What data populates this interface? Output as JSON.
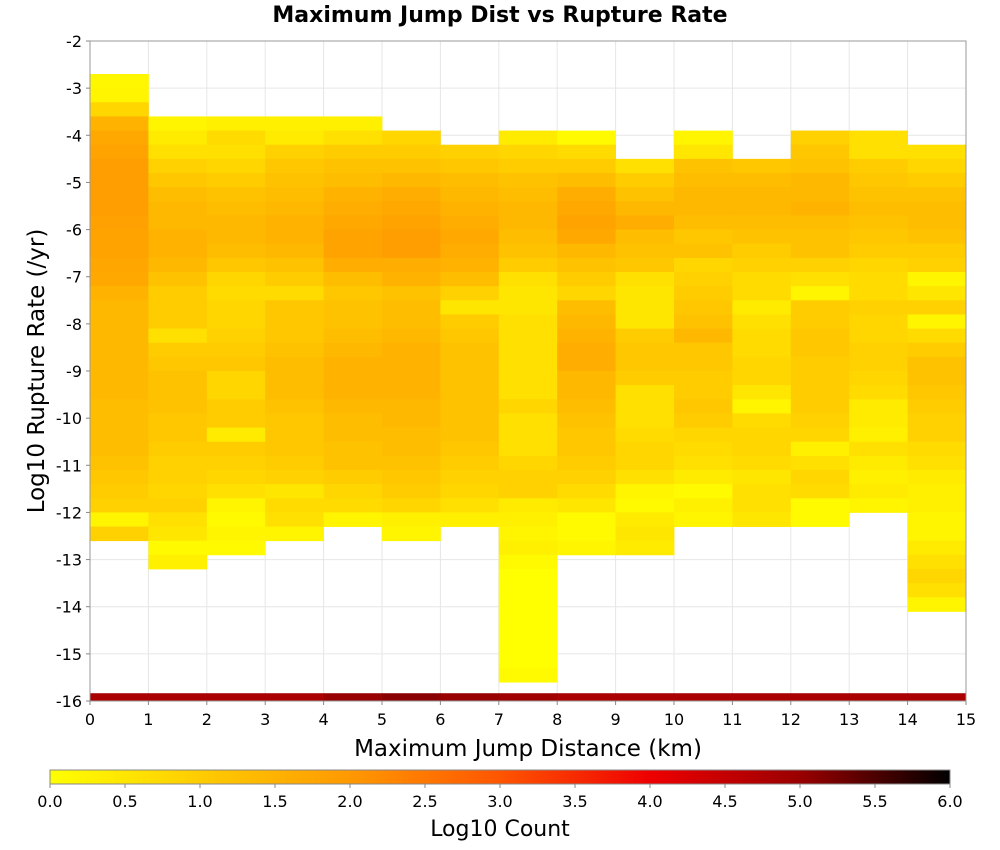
{
  "chart_data": {
    "type": "heatmap",
    "title": "Maximum Jump Dist vs Rupture Rate",
    "xlabel": "Maximum Jump Distance (km)",
    "ylabel": "Log10 Rupture Rate (/yr)",
    "xlim": [
      0,
      15
    ],
    "ylim": [
      -16,
      -2
    ],
    "x_ticks": [
      "0",
      "1",
      "2",
      "3",
      "4",
      "5",
      "6",
      "7",
      "8",
      "9",
      "10",
      "11",
      "12",
      "13",
      "14",
      "15"
    ],
    "y_ticks": [
      "-16",
      "-15",
      "-14",
      "-13",
      "-12",
      "-11",
      "-10",
      "-9",
      "-8",
      "-7",
      "-6",
      "-5",
      "-4",
      "-3",
      "-2"
    ],
    "grid": true,
    "x_bin_width": 1,
    "y_bin_height": 0.3,
    "colorbar": {
      "label": "Log10 Count",
      "range": [
        0.0,
        6.0
      ],
      "ticks": [
        "0.0",
        "0.5",
        "1.0",
        "1.5",
        "2.0",
        "2.5",
        "3.0",
        "3.5",
        "4.0",
        "4.5",
        "5.0",
        "5.5",
        "6.0"
      ],
      "colors": [
        "#ffff00",
        "#ffcc00",
        "#ff9900",
        "#ff5500",
        "#ee0000",
        "#990000",
        "#000000"
      ]
    },
    "columns": [
      {
        "x": 0,
        "y_top": -2.7,
        "values": [
          0.15,
          0.2,
          0.8,
          1.5,
          1.7,
          1.8,
          1.9,
          1.9,
          1.9,
          1.9,
          1.85,
          1.8,
          1.8,
          1.75,
          1.7,
          1.5,
          1.4,
          1.4,
          1.4,
          1.4,
          1.4,
          1.4,
          1.4,
          1.3,
          1.3,
          1.3,
          1.3,
          1.2,
          1.1,
          1.0,
          0.9,
          0.2,
          0.9
        ]
      },
      {
        "x": 1,
        "y_top": -3.6,
        "values": [
          0.2,
          0.4,
          0.6,
          0.9,
          1.1,
          1.3,
          1.4,
          1.4,
          1.5,
          1.5,
          1.4,
          1.2,
          1.0,
          1.0,
          1.0,
          0.6,
          1.0,
          1.1,
          1.2,
          1.2,
          1.2,
          1.1,
          1.1,
          1.0,
          0.9,
          0.9,
          0.8,
          0.9,
          0.6,
          0.5,
          0.1,
          0.3
        ]
      },
      {
        "x": 2,
        "y_top": -3.6,
        "values": [
          0.3,
          0.7,
          0.6,
          0.8,
          1.0,
          1.2,
          1.3,
          1.4,
          1.4,
          1.3,
          1.1,
          0.8,
          0.7,
          0.8,
          0.8,
          0.9,
          1.0,
          1.1,
          0.8,
          0.8,
          1.0,
          1.0,
          0.4,
          1.0,
          0.9,
          0.8,
          0.6,
          0.2,
          0.1,
          0.2,
          0.1
        ]
      },
      {
        "x": 3,
        "y_top": -3.6,
        "values": [
          0.3,
          0.4,
          0.9,
          1.1,
          1.2,
          1.3,
          1.4,
          1.5,
          1.5,
          1.4,
          1.2,
          1.0,
          0.7,
          1.1,
          1.1,
          1.1,
          1.2,
          1.3,
          1.3,
          1.3,
          1.2,
          1.1,
          1.1,
          1.1,
          1.0,
          0.9,
          0.5,
          0.7,
          0.6,
          0.2
        ]
      },
      {
        "x": 4,
        "y_top": -3.6,
        "values": [
          0.3,
          0.6,
          1.0,
          1.2,
          1.3,
          1.5,
          1.6,
          1.7,
          1.8,
          1.8,
          1.6,
          1.3,
          1.1,
          1.2,
          1.2,
          1.3,
          1.4,
          1.5,
          1.5,
          1.5,
          1.4,
          1.3,
          1.3,
          1.2,
          1.2,
          1.0,
          0.8,
          0.7,
          0.2
        ]
      },
      {
        "x": 5,
        "y_top": -3.9,
        "values": [
          0.8,
          1.0,
          1.2,
          1.4,
          1.6,
          1.7,
          1.8,
          1.9,
          1.9,
          1.6,
          1.5,
          1.2,
          1.3,
          1.3,
          1.4,
          1.5,
          1.5,
          1.5,
          1.5,
          1.4,
          1.4,
          1.3,
          1.3,
          1.2,
          1.1,
          1.0,
          0.8,
          0.3,
          0.2
        ]
      },
      {
        "x": 6,
        "y_top": -4.2,
        "values": [
          0.9,
          1.1,
          1.3,
          1.4,
          1.5,
          1.6,
          1.7,
          1.6,
          1.5,
          1.3,
          0.9,
          0.5,
          1.0,
          1.1,
          1.2,
          1.2,
          1.2,
          1.2,
          1.2,
          1.2,
          1.2,
          1.1,
          1.0,
          0.9,
          0.8,
          0.6,
          0.3
        ]
      },
      {
        "x": 7,
        "y_top": -3.9,
        "values": [
          0.4,
          0.8,
          1.0,
          1.2,
          1.3,
          1.4,
          1.4,
          1.3,
          1.2,
          1.0,
          0.6,
          0.5,
          0.5,
          0.6,
          0.6,
          0.6,
          0.6,
          0.6,
          0.6,
          0.8,
          0.6,
          0.6,
          0.6,
          0.8,
          0.9,
          0.9,
          0.4,
          0.3,
          0.2,
          0.3,
          0.1,
          0.0,
          0.0,
          0.0,
          0.0,
          0.0,
          0.0,
          0.0,
          0.1
        ]
      },
      {
        "x": 8,
        "y_top": -3.9,
        "values": [
          0.1,
          0.7,
          1.0,
          1.3,
          1.6,
          1.7,
          1.8,
          1.7,
          1.4,
          1.2,
          1.0,
          0.8,
          1.3,
          1.4,
          1.5,
          1.6,
          1.6,
          1.4,
          1.4,
          1.3,
          1.2,
          1.1,
          1.1,
          1.0,
          0.9,
          0.7,
          0.5,
          0.1,
          0.1,
          0.2
        ]
      },
      {
        "x": 9,
        "y_top": -4.5,
        "values": [
          0.6,
          1.0,
          1.2,
          1.4,
          1.6,
          1.3,
          1.2,
          1.1,
          0.6,
          0.5,
          0.5,
          0.5,
          1.0,
          1.1,
          1.1,
          1.0,
          0.6,
          0.6,
          0.6,
          0.7,
          0.8,
          0.8,
          0.6,
          0.2,
          0.1,
          0.4,
          0.5,
          0.4
        ]
      },
      {
        "x": 10,
        "y_top": -3.9,
        "values": [
          0.2,
          0.5,
          1.2,
          1.3,
          1.4,
          1.4,
          1.3,
          1.1,
          1.2,
          0.8,
          0.9,
          1.0,
          1.1,
          1.2,
          1.4,
          1.1,
          1.1,
          1.0,
          1.0,
          1.1,
          1.0,
          0.8,
          0.7,
          0.6,
          0.4,
          0.1,
          0.3,
          0.2
        ]
      },
      {
        "x": 11,
        "y_top": -4.5,
        "values": [
          1.1,
          1.3,
          1.4,
          1.4,
          1.3,
          1.2,
          1.0,
          0.9,
          0.7,
          0.7,
          0.4,
          0.6,
          0.7,
          0.7,
          0.8,
          0.8,
          0.5,
          0.2,
          0.7,
          0.8,
          0.8,
          0.7,
          0.5,
          0.6,
          0.6,
          0.5
        ]
      },
      {
        "x": 12,
        "y_top": -3.9,
        "values": [
          0.9,
          1.1,
          1.2,
          1.4,
          1.4,
          1.5,
          1.3,
          1.2,
          1.2,
          0.9,
          0.6,
          0.2,
          1.0,
          1.0,
          1.1,
          1.1,
          1.0,
          1.0,
          1.0,
          1.0,
          0.9,
          0.8,
          0.3,
          0.6,
          0.8,
          0.7,
          0.1,
          0.1
        ]
      },
      {
        "x": 13,
        "y_top": -3.9,
        "values": [
          0.6,
          0.6,
          1.0,
          1.1,
          1.2,
          1.3,
          1.2,
          1.1,
          1.0,
          0.8,
          0.7,
          0.7,
          0.9,
          0.8,
          0.8,
          0.9,
          0.9,
          0.8,
          0.7,
          0.4,
          0.4,
          0.3,
          0.6,
          0.4,
          0.3,
          0.4,
          0.2
        ]
      },
      {
        "x": 14,
        "y_top": -4.2,
        "values": [
          0.6,
          0.8,
          1.0,
          1.2,
          1.3,
          1.3,
          1.2,
          1.0,
          0.9,
          0.2,
          0.5,
          0.9,
          0.2,
          0.7,
          1.0,
          1.2,
          1.2,
          1.1,
          1.0,
          0.9,
          0.9,
          0.7,
          0.6,
          0.4,
          0.3,
          0.3,
          0.2,
          0.2,
          0.4,
          0.6,
          0.8,
          0.6,
          0.2
        ]
      }
    ],
    "bottom_row": {
      "y_center": -15.92,
      "values": [
        4.8,
        4.8,
        4.8,
        4.8,
        5.0,
        5.1,
        5.0,
        4.9,
        4.8,
        4.8,
        4.8,
        4.8,
        4.8,
        4.8,
        4.8
      ]
    }
  }
}
